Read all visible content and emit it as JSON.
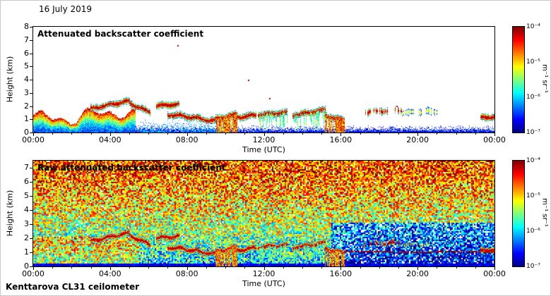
{
  "header": {
    "date_label": "16 July 2019"
  },
  "footer": {
    "instrument_label": "Kenttarova CL31 ceilometer"
  },
  "colorbar": {
    "tick_labels": [
      "10⁻⁴",
      "10⁻⁵",
      "10⁻⁶",
      "10⁻⁷"
    ],
    "unit_label": "m⁻¹ sr⁻¹",
    "colormap": "jet",
    "scale": "log",
    "range": [
      "1e-7",
      "1e-4"
    ]
  },
  "panels": [
    {
      "title": "Attenuated backscatter coefficient",
      "xlabel": "Time (UTC)",
      "ylabel": "Height (km)",
      "x_tick_labels": [
        "00:00",
        "04:00",
        "08:00",
        "12:00",
        "16:00",
        "20:00",
        "00:00"
      ],
      "y_tick_labels": [
        "8",
        "7",
        "6",
        "5",
        "4",
        "3",
        "2",
        "1",
        "0"
      ]
    },
    {
      "title": "Raw attenuated backscatter coefficient",
      "xlabel": "Time (UTC)",
      "ylabel": "Height (km)",
      "x_tick_labels": [
        "00:00",
        "04:00",
        "08:00",
        "12:00",
        "16:00",
        "20:00",
        "00:00"
      ],
      "y_tick_labels": [
        "7",
        "6",
        "5",
        "4",
        "3",
        "2",
        "1",
        "0"
      ]
    }
  ],
  "chart_data": [
    {
      "type": "heatmap",
      "title": "Attenuated backscatter coefficient",
      "xlabel": "Time (UTC)",
      "ylabel": "Height (km)",
      "x_range_hours": [
        0,
        24
      ],
      "ylim_km": [
        0,
        8
      ],
      "colormap": "jet",
      "value_range": [
        "1e-7",
        "1e-4"
      ],
      "value_units": "m⁻¹ sr⁻¹",
      "background": "white below detection threshold",
      "features": {
        "surface_noise": {
          "top_km": 0.6,
          "description": "blue speckle band near the ground all day"
        },
        "boundary_layer_plumes": {
          "hours": [
            0,
            5.3
          ],
          "top_km_min": 0.7,
          "top_km_max": 1.9,
          "description": "strong aerosol plumes, green body with yellow-red tops"
        },
        "low_level_haze": {
          "hours": [
            5.5,
            9.6
          ],
          "top_km": 1.0,
          "description": "light blue fuzz up to ~1 km"
        },
        "cloud_streaks": [
          {
            "hours": [
              3.0,
              5.0
            ],
            "km": [
              1.8,
              2.4
            ]
          },
          {
            "hours": [
              5.0,
              6.1
            ],
            "km": [
              2.2,
              1.5
            ]
          },
          {
            "hours": [
              6.4,
              7.6
            ],
            "km": [
              2.0,
              2.15
            ]
          },
          {
            "hours": [
              7.0,
              8.6
            ],
            "km": [
              1.35,
              1.1
            ]
          },
          {
            "hours": [
              8.6,
              9.5
            ],
            "km": [
              1.05,
              0.85
            ]
          },
          {
            "hours": [
              9.5,
              10.6
            ],
            "km": [
              1.0,
              1.4
            ],
            "to_ground": true
          },
          {
            "hours": [
              10.6,
              11.6
            ],
            "km": [
              1.15,
              1.3
            ]
          },
          {
            "hours": [
              11.7,
              13.2
            ],
            "km": [
              1.35,
              1.5
            ],
            "fall_streaks": true
          },
          {
            "hours": [
              13.5,
              15.2
            ],
            "km": [
              1.3,
              1.7
            ],
            "fall_streaks": true
          },
          {
            "hours": [
              15.2,
              16.2
            ],
            "km": [
              1.25,
              0.9
            ],
            "to_ground": true
          },
          {
            "hours": [
              17.2,
              19.2
            ],
            "km": [
              1.55,
              1.7
            ],
            "sparse": true
          },
          {
            "hours": [
              19.2,
              21.0
            ],
            "km": [
              1.5,
              1.6
            ],
            "sparse": true,
            "weak": true
          },
          {
            "hours": [
              23.3,
              24.0
            ],
            "km": [
              1.1,
              1.2
            ]
          }
        ],
        "isolated_dots": [
          {
            "hour": 7.5,
            "km": 6.6
          },
          {
            "hour": 11.2,
            "km": 4.0
          },
          {
            "hour": 12.3,
            "km": 2.6
          },
          {
            "hour": 18.9,
            "km": 2.0
          }
        ]
      }
    },
    {
      "type": "heatmap",
      "title": "Raw attenuated backscatter coefficient",
      "xlabel": "Time (UTC)",
      "ylabel": "Height (km)",
      "x_range_hours": [
        0,
        24
      ],
      "ylim_km": [
        0,
        7.5
      ],
      "colormap": "jet",
      "value_range": [
        "1e-7",
        "1e-4"
      ],
      "value_units": "m⁻¹ sr⁻¹",
      "description": "Dense speckle noise over the whole field; apparent signal increases with height (green-yellow low levels, orange-red aloft); same cloud and aerosol features as the top panel embedded in the noise.",
      "features": {
        "dark_surface_band_km": 0.3,
        "attenuated_region": {
          "hours": [
            15.5,
            24
          ],
          "below_km": 3.2,
          "description": "bluer, weaker region with white gaps in the evening"
        },
        "strong_left_low_level": {
          "hours": [
            0,
            5.5
          ],
          "below_km": 2.2
        },
        "red_line": {
          "hours": [
            16.2,
            24
          ],
          "km": 1.05
        },
        "cloud_streaks": "same as panel 0"
      }
    }
  ]
}
